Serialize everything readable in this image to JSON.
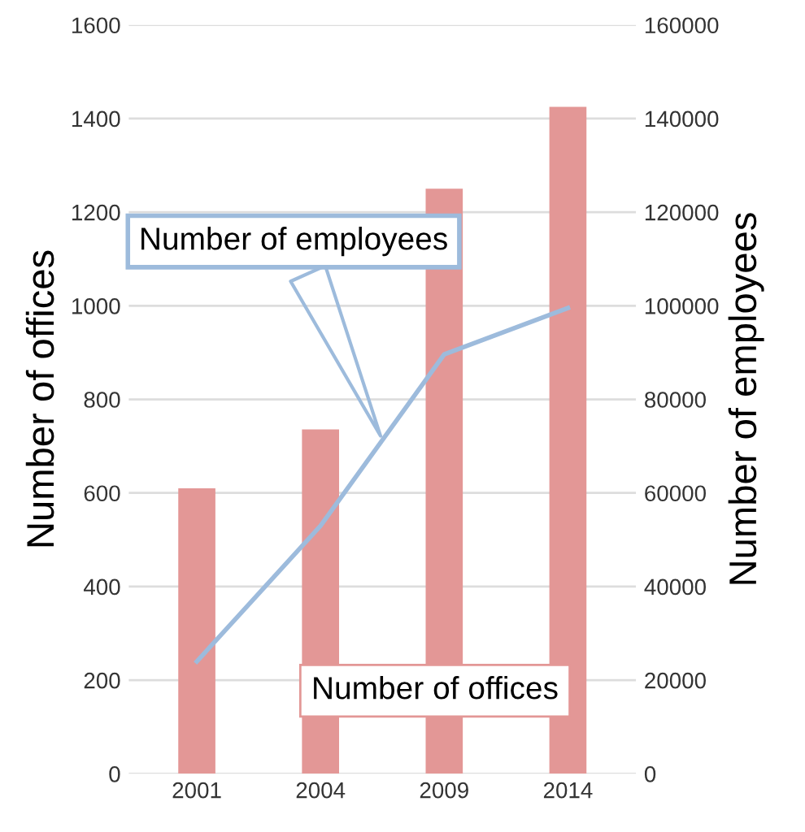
{
  "chart_data": {
    "type": "bar",
    "categories": [
      "2001",
      "2004",
      "2009",
      "2014"
    ],
    "ylabel": "Number of offices",
    "y2label": "Number of employees",
    "series": [
      {
        "name": "Number of offices",
        "color": "#e39796",
        "values": [
          610,
          736,
          1250,
          1425
        ]
      },
      {
        "name": "Number of employees",
        "type": "line",
        "axis": "y2",
        "color": "#9dbbdc",
        "values": [
          24000,
          53000,
          89600,
          99500
        ]
      }
    ],
    "ylim": [
      0,
      1600
    ],
    "yticks": [
      0,
      200,
      400,
      600,
      800,
      1000,
      1200,
      1400,
      1600
    ],
    "y2lim": [
      0,
      160000
    ],
    "y2ticks": [
      0,
      20000,
      40000,
      60000,
      80000,
      100000,
      120000,
      140000,
      160000
    ],
    "grid": "y",
    "legend": false
  }
}
